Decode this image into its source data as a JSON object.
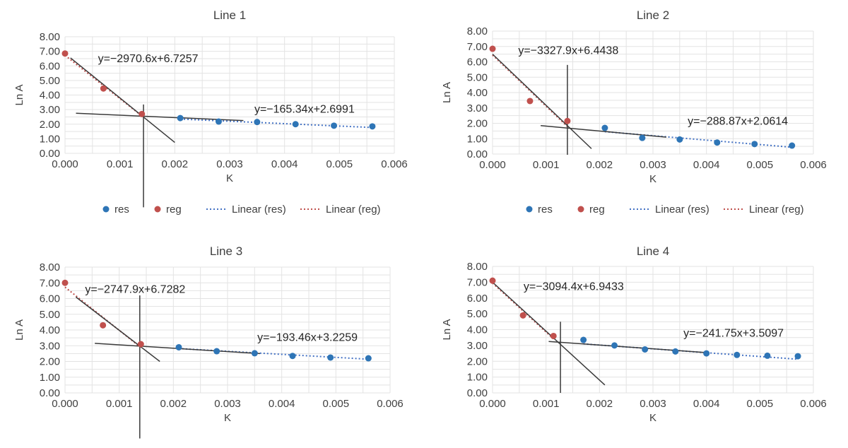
{
  "chart_data": [
    {
      "type": "scatter",
      "title": "Line 1",
      "xlabel": "K",
      "ylabel": "Ln A",
      "xlim": [
        0,
        0.006
      ],
      "ylim": [
        0,
        8
      ],
      "x_ticks": [
        "0.000",
        "0.001",
        "0.002",
        "0.003",
        "0.004",
        "0.005",
        "0.006"
      ],
      "y_ticks": [
        "0.00",
        "1.00",
        "2.00",
        "3.00",
        "4.00",
        "5.00",
        "6.00",
        "7.00",
        "8.00"
      ],
      "series": [
        {
          "name": "res",
          "color": "#2e75b6",
          "x": [
            0.0021,
            0.0028,
            0.0035,
            0.0042,
            0.0049,
            0.0056
          ],
          "y": [
            2.42,
            2.18,
            2.15,
            2.0,
            1.9,
            1.85
          ]
        },
        {
          "name": "reg",
          "color": "#c0504d",
          "x": [
            0.0,
            0.0007,
            0.0014
          ],
          "y": [
            6.85,
            4.45,
            2.7
          ]
        }
      ],
      "trendlines": [
        {
          "name": "Linear (res)",
          "color": "#4472c4",
          "slope": -165.34,
          "intercept": 2.6991,
          "x_range": [
            0.0021,
            0.0056
          ]
        },
        {
          "name": "Linear (reg)",
          "color": "#c0504d",
          "slope": -2970.6,
          "intercept": 6.7257,
          "x_range": [
            0.0,
            0.0014
          ]
        }
      ],
      "drawn_lines": [
        {
          "x1": 0.0002,
          "y1": 2.75,
          "x2": 0.00325,
          "y2": 2.25
        },
        {
          "x1": 0.0001,
          "y1": 6.55,
          "x2": 0.002,
          "y2": 0.75
        },
        {
          "x1": 0.00143,
          "y1": 3.35,
          "x2": 0.00143,
          "y2": -3.7
        }
      ],
      "equations": [
        {
          "text": "y=−2970.6x+6.7257",
          "x": 0.0006,
          "y": 6.25
        },
        {
          "text": "y=−165.34x+2.6991",
          "x": 0.00345,
          "y": 2.8
        }
      ],
      "legend": [
        "res",
        "reg",
        "Linear (res)",
        "Linear (reg)"
      ]
    },
    {
      "type": "scatter",
      "title": "Line 2",
      "xlabel": "K",
      "ylabel": "Ln A",
      "xlim": [
        0,
        0.006
      ],
      "ylim": [
        0,
        8
      ],
      "x_ticks": [
        "0.000",
        "0.001",
        "0.002",
        "0.003",
        "0.004",
        "0.005",
        "0.006"
      ],
      "y_ticks": [
        "0.00",
        "1.00",
        "2.00",
        "3.00",
        "4.00",
        "5.00",
        "6.00",
        "7.00",
        "8.00"
      ],
      "series": [
        {
          "name": "res",
          "color": "#2e75b6",
          "x": [
            0.0021,
            0.0028,
            0.0035,
            0.0042,
            0.0049,
            0.0056
          ],
          "y": [
            1.7,
            1.05,
            0.95,
            0.75,
            0.65,
            0.55
          ]
        },
        {
          "name": "reg",
          "color": "#c0504d",
          "x": [
            0.0,
            0.0007,
            0.0014
          ],
          "y": [
            6.85,
            3.45,
            2.15
          ]
        }
      ],
      "trendlines": [
        {
          "name": "Linear (res)",
          "color": "#4472c4",
          "slope": -288.87,
          "intercept": 2.0614,
          "x_range": [
            0.0021,
            0.0056
          ]
        },
        {
          "name": "Linear (reg)",
          "color": "#c0504d",
          "slope": -3327.9,
          "intercept": 6.4438,
          "x_range": [
            0.0,
            0.0014
          ]
        }
      ],
      "drawn_lines": [
        {
          "x1": 0.0009,
          "y1": 1.85,
          "x2": 0.00325,
          "y2": 1.1
        },
        {
          "x1": 0.0,
          "y1": 6.5,
          "x2": 0.00185,
          "y2": 0.35
        },
        {
          "x1": 0.0014,
          "y1": 5.8,
          "x2": 0.0014,
          "y2": -0.05
        }
      ],
      "equations": [
        {
          "text": "y=−3327.9x+6.4438",
          "x": 0.00048,
          "y": 6.5
        },
        {
          "text": "y=−288.87x+2.0614",
          "x": 0.00365,
          "y": 1.9
        }
      ],
      "legend": [
        "res",
        "reg",
        "Linear (res)",
        "Linear (reg)"
      ]
    },
    {
      "type": "scatter",
      "title": "Line 3",
      "xlabel": "K",
      "ylabel": "Ln A",
      "xlim": [
        0,
        0.006
      ],
      "ylim": [
        0,
        8
      ],
      "x_ticks": [
        "0.000",
        "0.001",
        "0.002",
        "0.003",
        "0.004",
        "0.005",
        "0.006"
      ],
      "y_ticks": [
        "0.00",
        "1.00",
        "2.00",
        "3.00",
        "4.00",
        "5.00",
        "6.00",
        "7.00",
        "8.00"
      ],
      "series": [
        {
          "name": "res",
          "color": "#2e75b6",
          "x": [
            0.0021,
            0.0028,
            0.0035,
            0.0042,
            0.0049,
            0.0056
          ],
          "y": [
            2.9,
            2.65,
            2.52,
            2.35,
            2.25,
            2.2
          ]
        },
        {
          "name": "reg",
          "color": "#c0504d",
          "x": [
            0.0,
            0.0007,
            0.0014
          ],
          "y": [
            7.0,
            4.3,
            3.1
          ]
        }
      ],
      "trendlines": [
        {
          "name": "Linear (res)",
          "color": "#4472c4",
          "slope": -193.46,
          "intercept": 3.2259,
          "x_range": [
            0.0021,
            0.0056
          ]
        },
        {
          "name": "Linear (reg)",
          "color": "#c0504d",
          "slope": -2747.9,
          "intercept": 6.7282,
          "x_range": [
            0.0,
            0.0014
          ]
        }
      ],
      "drawn_lines": [
        {
          "x1": 0.00055,
          "y1": 3.15,
          "x2": 0.0036,
          "y2": 2.5
        },
        {
          "x1": 0.0002,
          "y1": 6.1,
          "x2": 0.00175,
          "y2": 2.0
        },
        {
          "x1": 0.00138,
          "y1": 6.2,
          "x2": 0.00138,
          "y2": -2.9
        }
      ],
      "equations": [
        {
          "text": "y=−2747.9x+6.7282",
          "x": 0.00037,
          "y": 6.35
        },
        {
          "text": "y=−193.46x+3.2259",
          "x": 0.00355,
          "y": 3.3
        }
      ]
    },
    {
      "type": "scatter",
      "title": "Line 4",
      "xlabel": "K",
      "ylabel": "Ln A",
      "xlim": [
        0,
        0.006
      ],
      "ylim": [
        0,
        8
      ],
      "x_ticks": [
        "0.000",
        "0.001",
        "0.002",
        "0.003",
        "0.004",
        "0.005",
        "0.006"
      ],
      "y_ticks": [
        "0.00",
        "1.00",
        "2.00",
        "3.00",
        "4.00",
        "5.00",
        "6.00",
        "7.00",
        "8.00"
      ],
      "series": [
        {
          "name": "res",
          "color": "#2e75b6",
          "x": [
            0.0017,
            0.00228,
            0.00285,
            0.00342,
            0.004,
            0.00457,
            0.00514,
            0.00571
          ],
          "y": [
            3.35,
            3.0,
            2.75,
            2.62,
            2.5,
            2.4,
            2.35,
            2.32
          ]
        },
        {
          "name": "reg",
          "color": "#c0504d",
          "x": [
            0.0,
            0.00057,
            0.00114
          ],
          "y": [
            7.1,
            4.9,
            3.6
          ]
        }
      ],
      "trendlines": [
        {
          "name": "Linear (res)",
          "color": "#4472c4",
          "slope": -241.75,
          "intercept": 3.5097,
          "x_range": [
            0.0017,
            0.00571
          ]
        },
        {
          "name": "Linear (reg)",
          "color": "#c0504d",
          "slope": -3094.4,
          "intercept": 6.9433,
          "x_range": [
            0.0,
            0.00114
          ]
        }
      ],
      "drawn_lines": [
        {
          "x1": 0.00105,
          "y1": 3.25,
          "x2": 0.004,
          "y2": 2.55
        },
        {
          "x1": 0.0,
          "y1": 7.0,
          "x2": 0.0021,
          "y2": 0.5
        },
        {
          "x1": 0.00127,
          "y1": 4.5,
          "x2": 0.00127,
          "y2": 0.0
        }
      ],
      "equations": [
        {
          "text": "y=−3094.4x+6.9433",
          "x": 0.00058,
          "y": 6.5
        },
        {
          "text": "y=−241.75x+3.5097",
          "x": 0.00357,
          "y": 3.55
        }
      ]
    }
  ]
}
